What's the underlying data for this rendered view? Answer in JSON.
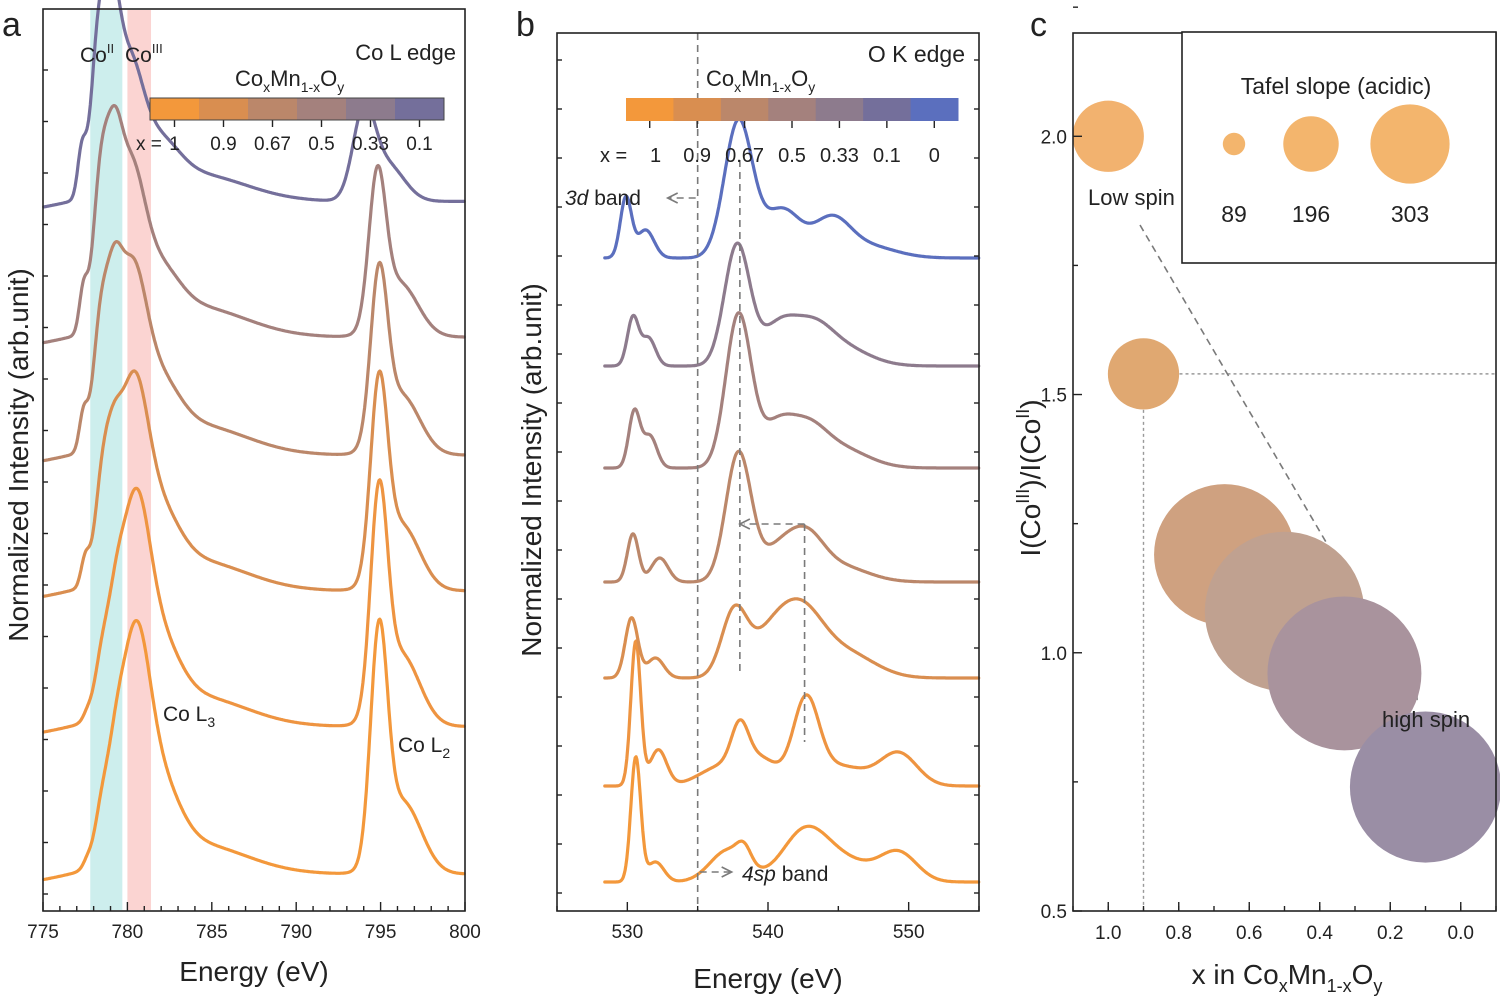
{
  "panel_labels": [
    "a",
    "b",
    "c"
  ],
  "chart_data": [
    {
      "type": "line",
      "panel": "a",
      "title": "Co L edge",
      "xlabel": "Energy (eV)",
      "ylabel": "Normalized Intensity (arb.unit)",
      "xlim": [
        775,
        800
      ],
      "xticks": [
        "775",
        "780",
        "785",
        "790",
        "795",
        "800"
      ],
      "region_labels": {
        "co2": "Co",
        "co2_sup": "II",
        "co3": "Co",
        "co3_sup": "III"
      },
      "regions": [
        {
          "name": "CoII",
          "x_range": [
            777.8,
            779.7
          ],
          "color": "#cdeeed"
        },
        {
          "name": "CoIII",
          "x_range": [
            780.0,
            781.4
          ],
          "color": "#fbd4d2"
        }
      ],
      "peak_labels": {
        "l3_main": "Co L",
        "l3_sub": "3",
        "l2_main": "Co L",
        "l2_sub": "2"
      },
      "colorbar": {
        "formula": {
          "p1": "Co",
          "s1": "x",
          "p2": "Mn",
          "s2": "1-x",
          "p3": "O",
          "s3": "y"
        },
        "colors": [
          "#f3983b",
          "#d98e50",
          "#bb876a",
          "#a4817d",
          "#8d7b8d",
          "#746f9b"
        ],
        "prefix": "x =",
        "labels": [
          "1",
          "0.9",
          "0.67",
          "0.5",
          "0.33",
          "0.1"
        ]
      },
      "series": [
        {
          "name": "x = 1",
          "color": "#f3983b",
          "offset": 0,
          "peaks": [
            [
              777.6,
              0.12,
              0.25
            ],
            [
              778.5,
              0.9,
              0.45
            ],
            [
              779.3,
              0.9,
              0.45
            ],
            [
              780.4,
              3.3,
              0.85
            ],
            [
              781.8,
              1.2,
              1.2
            ],
            [
              784.0,
              0.5,
              3.0
            ],
            [
              794.9,
              3.7,
              0.5
            ],
            [
              796.3,
              1.2,
              1.1
            ]
          ]
        },
        {
          "name": "x = 0.9",
          "color": "#ee9441",
          "offset": 1.25,
          "peaks": [
            [
              777.6,
              0.12,
              0.25
            ],
            [
              778.5,
              0.95,
              0.45
            ],
            [
              779.3,
              0.95,
              0.45
            ],
            [
              780.4,
              3.1,
              0.85
            ],
            [
              781.8,
              1.1,
              1.2
            ],
            [
              784.0,
              0.5,
              3.0
            ],
            [
              794.9,
              3.5,
              0.5
            ],
            [
              796.2,
              1.2,
              1.1
            ]
          ]
        },
        {
          "name": "x = 0.67",
          "color": "#d98e50",
          "offset": 2.4,
          "peaks": [
            [
              777.5,
              0.45,
              0.25
            ],
            [
              778.5,
              1.5,
              0.45
            ],
            [
              779.2,
              1.2,
              0.45
            ],
            [
              780.3,
              2.9,
              0.85
            ],
            [
              781.8,
              1.0,
              1.2
            ],
            [
              784.0,
              0.5,
              3.0
            ],
            [
              794.9,
              3.1,
              0.5
            ],
            [
              796.2,
              1.1,
              1.1
            ]
          ]
        },
        {
          "name": "x = 0.5",
          "color": "#bb876a",
          "offset": 3.55,
          "peaks": [
            [
              777.4,
              0.6,
              0.25
            ],
            [
              778.4,
              1.9,
              0.45
            ],
            [
              779.2,
              1.6,
              0.45
            ],
            [
              780.2,
              2.6,
              0.85
            ],
            [
              781.8,
              0.9,
              1.2
            ],
            [
              784.0,
              0.5,
              3.0
            ],
            [
              794.9,
              2.7,
              0.5
            ],
            [
              796.2,
              1.0,
              1.1
            ]
          ]
        },
        {
          "name": "x = 0.33",
          "color": "#a4817d",
          "offset": 4.55,
          "peaks": [
            [
              777.4,
              0.7,
              0.25
            ],
            [
              778.4,
              2.3,
              0.45
            ],
            [
              779.2,
              1.8,
              0.45
            ],
            [
              780.1,
              2.4,
              0.85
            ],
            [
              781.8,
              0.8,
              1.2
            ],
            [
              784.0,
              0.5,
              3.0
            ],
            [
              794.8,
              2.4,
              0.5
            ],
            [
              796.1,
              0.9,
              1.1
            ]
          ]
        },
        {
          "name": "x = 0.1",
          "color": "#746f9b",
          "offset": 5.7,
          "peaks": [
            [
              777.3,
              0.75,
              0.25
            ],
            [
              778.3,
              2.5,
              0.45
            ],
            [
              779.1,
              2.0,
              0.45
            ],
            [
              780.0,
              2.0,
              0.85
            ],
            [
              781.8,
              0.7,
              1.2
            ],
            [
              784.0,
              0.45,
              3.0
            ],
            [
              794.0,
              1.4,
              0.65
            ],
            [
              795.4,
              0.6,
              1.0
            ]
          ]
        }
      ]
    },
    {
      "type": "line",
      "panel": "b",
      "title": "O K edge",
      "xlabel": "Energy (eV)",
      "ylabel": "Normalized Intensity (arb.unit)",
      "xlim": [
        525,
        555
      ],
      "xticks": [
        "530",
        "540",
        "550"
      ],
      "annotations": {
        "band3d_italic": "3d",
        "band3d_rest": " band",
        "band4sp_italic": "4sp",
        "band4sp_rest": " band"
      },
      "dashed_lines_x": [
        535.0,
        538.0,
        542.6
      ],
      "colorbar": {
        "formula": {
          "p1": "Co",
          "s1": "x",
          "p2": "Mn",
          "s2": "1-x",
          "p3": "O",
          "s3": "y"
        },
        "colors": [
          "#f3983b",
          "#d98e50",
          "#bb876a",
          "#a4817d",
          "#8d7b8d",
          "#746f9b",
          "#5b6fbe"
        ],
        "prefix": "x = ",
        "labels": [
          "1",
          "0.9",
          "0.67",
          "0.5",
          "0.33",
          "0.1",
          "0"
        ]
      },
      "series": [
        {
          "name": "x = 1",
          "color": "#f3983b",
          "offset": 0,
          "peaks": [
            [
              530.6,
              3.1,
              0.35
            ],
            [
              532.0,
              0.5,
              0.6
            ],
            [
              537.2,
              0.8,
              1.3
            ],
            [
              538.3,
              0.4,
              0.5
            ],
            [
              542.6,
              1.2,
              1.6
            ],
            [
              545.5,
              0.5,
              2.0
            ],
            [
              549.3,
              0.7,
              1.3
            ]
          ]
        },
        {
          "name": "x = 0.9",
          "color": "#ee9441",
          "offset": 0.8,
          "peaks": [
            [
              530.6,
              3.6,
              0.35
            ],
            [
              532.2,
              0.9,
              0.6
            ],
            [
              536.8,
              0.5,
              1.6
            ],
            [
              538.0,
              1.0,
              0.6
            ],
            [
              539.5,
              0.6,
              1.2
            ],
            [
              542.7,
              2.0,
              0.9
            ],
            [
              545.0,
              0.5,
              2.0
            ],
            [
              549.3,
              0.8,
              1.3
            ]
          ]
        },
        {
          "name": "x = 0.67",
          "color": "#d98e50",
          "offset": 1.7,
          "peaks": [
            [
              530.3,
              1.5,
              0.45
            ],
            [
              532.0,
              0.5,
              0.6
            ],
            [
              537.6,
              1.6,
              0.9
            ],
            [
              540.0,
              0.8,
              1.4
            ],
            [
              542.3,
              1.6,
              1.6
            ],
            [
              545.6,
              0.6,
              2.0
            ]
          ]
        },
        {
          "name": "x = 0.5",
          "color": "#bb876a",
          "offset": 2.5,
          "peaks": [
            [
              530.4,
              1.2,
              0.4
            ],
            [
              532.3,
              0.6,
              0.6
            ],
            [
              537.9,
              3.2,
              0.9
            ],
            [
              540.8,
              0.8,
              1.3
            ],
            [
              542.8,
              0.9,
              1.2
            ],
            [
              545.0,
              0.4,
              2.0
            ]
          ]
        },
        {
          "name": "x = 0.33",
          "color": "#a4817d",
          "offset": 3.45,
          "peaks": [
            [
              530.5,
              1.4,
              0.4
            ],
            [
              531.6,
              0.8,
              0.5
            ],
            [
              537.9,
              3.8,
              0.9
            ],
            [
              540.6,
              1.0,
              1.2
            ],
            [
              542.8,
              0.8,
              1.3
            ],
            [
              545.0,
              0.5,
              2.0
            ]
          ]
        },
        {
          "name": "x = 0.1",
          "color": "#8d7b8d",
          "offset": 4.3,
          "peaks": [
            [
              530.4,
              1.2,
              0.4
            ],
            [
              531.5,
              0.7,
              0.5
            ],
            [
              537.8,
              3.0,
              0.9
            ],
            [
              540.8,
              1.0,
              1.3
            ],
            [
              543.2,
              0.7,
              1.3
            ],
            [
              545.0,
              0.5,
              2.0
            ]
          ]
        },
        {
          "name": "x = 0",
          "color": "#5b6fbe",
          "offset": 5.2,
          "peaks": [
            [
              529.9,
              1.5,
              0.4
            ],
            [
              531.3,
              0.7,
              0.6
            ],
            [
              537.9,
              3.4,
              1.0
            ],
            [
              541.0,
              1.2,
              1.3
            ],
            [
              544.5,
              0.9,
              1.3
            ],
            [
              547.0,
              0.3,
              2.0
            ]
          ]
        }
      ]
    },
    {
      "type": "scatter",
      "panel": "c",
      "xlabel": {
        "main": "x in Co",
        "s1": "x",
        "mid": "Mn",
        "s2": "1-x",
        "end": "O",
        "s3": "y"
      },
      "ylabel": {
        "pre": "I(Co",
        "sup1": "III",
        "mid": ")/I(Co",
        "sup2": "II",
        "end": ")"
      },
      "xlim": [
        1.1,
        -0.1
      ],
      "ylim": [
        0.5,
        2.2
      ],
      "xticks": [
        "1.0",
        "0.8",
        "0.6",
        "0.4",
        "0.2",
        "0.0"
      ],
      "yticks": [
        "0.5",
        "1.0",
        "1.5",
        "2.0"
      ],
      "legend": {
        "title": "Tafel slope (acidic)",
        "entries": [
          "89",
          "196",
          "303"
        ],
        "color": "#f3b56d",
        "placement": "top-right"
      },
      "annotations": {
        "low_spin": "Low spin",
        "high_spin": "high spin"
      },
      "points": [
        {
          "x": 1.0,
          "y": 2.0,
          "tafel": 60,
          "color": "#f2b26f"
        },
        {
          "x": 0.9,
          "y": 1.54,
          "tafel": 60,
          "color": "#e0a871"
        },
        {
          "x": 0.67,
          "y": 1.19,
          "tafel": 235,
          "color": "#cfa180"
        },
        {
          "x": 0.5,
          "y": 1.08,
          "tafel": 300,
          "color": "#c0a190"
        },
        {
          "x": 0.33,
          "y": 0.96,
          "tafel": 280,
          "color": "#a9939d"
        },
        {
          "x": 0.1,
          "y": 0.74,
          "tafel": 270,
          "color": "#9a8ea5"
        }
      ]
    }
  ]
}
